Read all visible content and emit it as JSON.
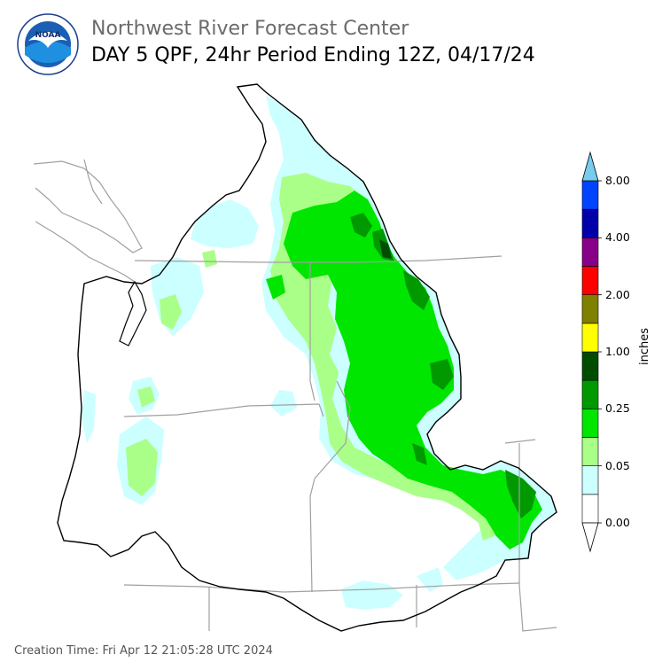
{
  "header": {
    "org": "Northwest River Forecast Center",
    "title": "DAY 5 QPF, 24hr Period Ending 12Z, 04/17/24"
  },
  "logo": {
    "text": "NOAA",
    "icon": "noaa-logo-icon"
  },
  "footer": {
    "creation": "Creation Time: Fri Apr 12 21:05:28 UTC 2024"
  },
  "colorbar": {
    "units": "inches",
    "tick_labels": [
      "0.00",
      "0.05",
      "0.25",
      "1.00",
      "2.00",
      "4.00",
      "8.00"
    ],
    "bins": [
      {
        "color": "#ffffff"
      },
      {
        "color": "#ccffff"
      },
      {
        "color": "#aaff88"
      },
      {
        "color": "#00e600"
      },
      {
        "color": "#009900"
      },
      {
        "color": "#004d00"
      },
      {
        "color": "#ffff00"
      },
      {
        "color": "#808000"
      },
      {
        "color": "#ff0000"
      },
      {
        "color": "#880088"
      },
      {
        "color": "#0000aa"
      },
      {
        "color": "#0044ff"
      }
    ],
    "extend_low_color": "#ffffff",
    "extend_high_color": "#77ccee"
  },
  "map": {
    "region": "Pacific Northwest river basins",
    "outline_color": "#000000",
    "state_line_color": "#a0a0a0"
  }
}
